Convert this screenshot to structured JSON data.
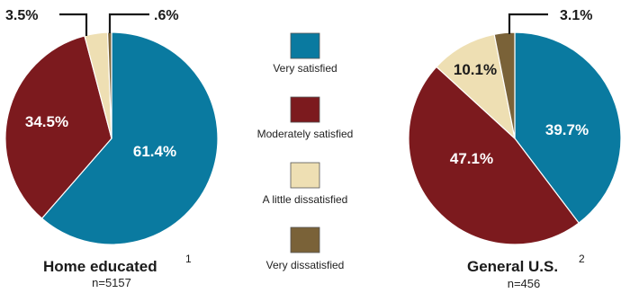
{
  "chart_data": [
    {
      "type": "pie",
      "title": "Home educated",
      "footnote": "1",
      "sample": "n=5157",
      "slices": [
        {
          "name": "Very satisfied",
          "value": 61.4,
          "label": "61.4%"
        },
        {
          "name": "Moderately satisfied",
          "value": 34.5,
          "label": "34.5%"
        },
        {
          "name": "A little dissatisfied",
          "value": 3.5,
          "label": "3.5%"
        },
        {
          "name": "Very dissatisfied",
          "value": 0.6,
          "label": ".6%"
        }
      ]
    },
    {
      "type": "pie",
      "title": "General U.S.",
      "footnote": "2",
      "sample": "n=456",
      "slices": [
        {
          "name": "Very satisfied",
          "value": 39.7,
          "label": "39.7%"
        },
        {
          "name": "Moderately satisfied",
          "value": 47.1,
          "label": "47.1%"
        },
        {
          "name": "A little dissatisfied",
          "value": 10.1,
          "label": "10.1%"
        },
        {
          "name": "Very dissatisfied",
          "value": 3.1,
          "label": "3.1%"
        }
      ]
    }
  ],
  "legend": [
    {
      "label": "Very satisfied",
      "color": "#0a7aa0"
    },
    {
      "label": "Moderately satisfied",
      "color": "#7c1a1e"
    },
    {
      "label": "A little dissatisfied",
      "color": "#eedfb3"
    },
    {
      "label": "Very dissatisfied",
      "color": "#7a6238"
    }
  ]
}
